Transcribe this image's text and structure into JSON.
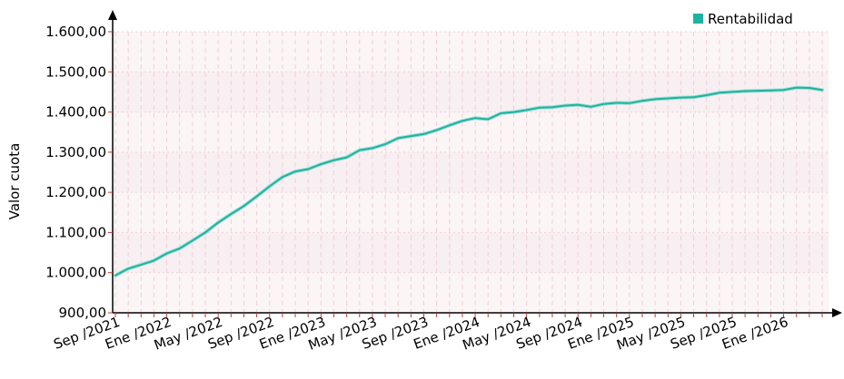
{
  "chart_data": {
    "type": "line",
    "title": "",
    "ylabel": "Valor cuota",
    "xlabel": "",
    "ylim": [
      900,
      1600
    ],
    "yticks": [
      900,
      1000,
      1100,
      1200,
      1300,
      1400,
      1500,
      1600
    ],
    "ytick_labels": [
      "900,00",
      "1.000,00",
      "1.100,00",
      "1.200,00",
      "1.300,00",
      "1.400,00",
      "1.500,00",
      "1.600,00"
    ],
    "x": [
      "2021-09",
      "2021-10",
      "2021-11",
      "2021-12",
      "2022-01",
      "2022-02",
      "2022-03",
      "2022-04",
      "2022-05",
      "2022-06",
      "2022-07",
      "2022-08",
      "2022-09",
      "2022-10",
      "2022-11",
      "2022-12",
      "2023-01",
      "2023-02",
      "2023-03",
      "2023-04",
      "2023-05",
      "2023-06",
      "2023-07",
      "2023-08",
      "2023-09",
      "2023-10",
      "2023-11",
      "2023-12",
      "2024-01",
      "2024-02",
      "2024-03",
      "2024-04",
      "2024-05",
      "2024-06",
      "2024-07",
      "2024-08",
      "2024-09",
      "2024-10",
      "2024-11",
      "2024-12",
      "2025-01",
      "2025-02",
      "2025-03",
      "2025-04",
      "2025-05",
      "2025-06",
      "2025-07",
      "2025-08",
      "2025-09",
      "2025-10",
      "2025-11",
      "2025-12",
      "2026-01",
      "2026-02",
      "2026-03",
      "2026-04"
    ],
    "xtick_labels": [
      "Sep /2021",
      "Ene /2022",
      "May /2022",
      "Sep /2022",
      "Ene /2023",
      "May /2023",
      "Sep /2023",
      "Ene /2024",
      "May /2024",
      "Sep /2024",
      "Ene /2025",
      "May /2025",
      "Sep /2025",
      "Ene /2026"
    ],
    "series": [
      {
        "name": "Rentabilidad",
        "color": "#20b2a0",
        "values": [
          993,
          1010,
          1020,
          1030,
          1048,
          1060,
          1080,
          1100,
          1125,
          1146,
          1166,
          1190,
          1215,
          1238,
          1252,
          1258,
          1270,
          1280,
          1287,
          1305,
          1310,
          1320,
          1335,
          1340,
          1345,
          1355,
          1367,
          1378,
          1385,
          1382,
          1397,
          1400,
          1405,
          1411,
          1412,
          1416,
          1418,
          1413,
          1420,
          1423,
          1422,
          1428,
          1432,
          1434,
          1436,
          1437,
          1442,
          1448,
          1450,
          1452,
          1453,
          1454,
          1455,
          1461,
          1460,
          1455
        ]
      }
    ],
    "legend_position": "top-right",
    "grid": true
  }
}
